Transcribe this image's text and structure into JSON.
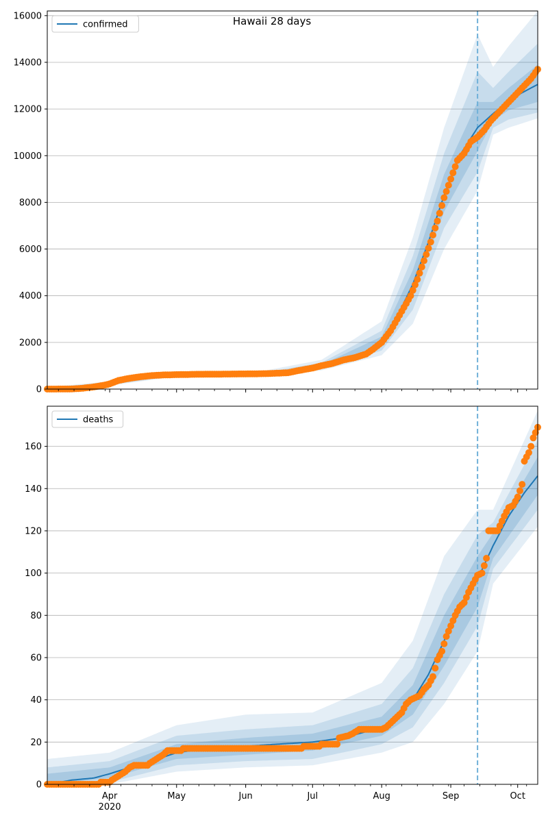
{
  "chart_data": [
    {
      "type": "line",
      "title": "Hawaii 28 days",
      "legend": "confirmed",
      "legend_position": "upper-left",
      "grid": "horizontal",
      "line_color": "#1f77b4",
      "point_color": "#ff7f0e",
      "band_color": "#1f77b4",
      "forecast_start": "2020-09-13",
      "xlim": [
        "2020-03-04",
        "2020-10-10"
      ],
      "ylim": [
        0,
        16200
      ],
      "yticks": [
        0,
        2000,
        4000,
        6000,
        8000,
        10000,
        12000,
        14000,
        16000
      ],
      "observed": [
        [
          "2020-03-04",
          0
        ],
        [
          "2020-03-10",
          2
        ],
        [
          "2020-03-15",
          5
        ],
        [
          "2020-03-20",
          37
        ],
        [
          "2020-03-25",
          95
        ],
        [
          "2020-03-30",
          175
        ],
        [
          "2020-04-01",
          224
        ],
        [
          "2020-04-05",
          371
        ],
        [
          "2020-04-10",
          465
        ],
        [
          "2020-04-15",
          530
        ],
        [
          "2020-04-20",
          580
        ],
        [
          "2020-04-25",
          605
        ],
        [
          "2020-05-01",
          618
        ],
        [
          "2020-05-10",
          633
        ],
        [
          "2020-05-20",
          640
        ],
        [
          "2020-06-01",
          650
        ],
        [
          "2020-06-10",
          660
        ],
        [
          "2020-06-20",
          700
        ],
        [
          "2020-06-25",
          800
        ],
        [
          "2020-07-01",
          900
        ],
        [
          "2020-07-05",
          1000
        ],
        [
          "2020-07-10",
          1100
        ],
        [
          "2020-07-15",
          1250
        ],
        [
          "2020-07-20",
          1350
        ],
        [
          "2020-07-25",
          1500
        ],
        [
          "2020-07-28",
          1700
        ],
        [
          "2020-08-01",
          2000
        ],
        [
          "2020-08-05",
          2500
        ],
        [
          "2020-08-08",
          3000
        ],
        [
          "2020-08-11",
          3500
        ],
        [
          "2020-08-14",
          4000
        ],
        [
          "2020-08-17",
          4700
        ],
        [
          "2020-08-20",
          5500
        ],
        [
          "2020-08-23",
          6300
        ],
        [
          "2020-08-26",
          7200
        ],
        [
          "2020-08-29",
          8200
        ],
        [
          "2020-09-01",
          9000
        ],
        [
          "2020-09-04",
          9800
        ],
        [
          "2020-09-07",
          10100
        ],
        [
          "2020-09-10",
          10600
        ],
        [
          "2020-09-13",
          10800
        ],
        [
          "2020-09-16",
          11100
        ],
        [
          "2020-09-19",
          11500
        ],
        [
          "2020-09-22",
          11800
        ],
        [
          "2020-09-25",
          12100
        ],
        [
          "2020-09-28",
          12400
        ],
        [
          "2020-10-01",
          12700
        ],
        [
          "2020-10-04",
          13000
        ],
        [
          "2020-10-07",
          13300
        ],
        [
          "2020-10-10",
          13700
        ]
      ],
      "model": [
        [
          "2020-03-04",
          0
        ],
        [
          "2020-03-15",
          10
        ],
        [
          "2020-03-25",
          100
        ],
        [
          "2020-04-01",
          230
        ],
        [
          "2020-04-10",
          460
        ],
        [
          "2020-04-20",
          570
        ],
        [
          "2020-05-01",
          615
        ],
        [
          "2020-05-20",
          640
        ],
        [
          "2020-06-10",
          665
        ],
        [
          "2020-06-25",
          760
        ],
        [
          "2020-07-05",
          980
        ],
        [
          "2020-07-15",
          1250
        ],
        [
          "2020-07-25",
          1570
        ],
        [
          "2020-08-01",
          2050
        ],
        [
          "2020-08-08",
          3100
        ],
        [
          "2020-08-15",
          4500
        ],
        [
          "2020-08-22",
          6300
        ],
        [
          "2020-08-29",
          8300
        ],
        [
          "2020-09-05",
          10000
        ],
        [
          "2020-09-13",
          11200
        ],
        [
          "2020-09-20",
          11800
        ],
        [
          "2020-09-27",
          12350
        ],
        [
          "2020-10-03",
          12700
        ],
        [
          "2020-10-10",
          13050
        ]
      ],
      "bands": [
        [
          [
            "2020-03-04",
            0,
            80
          ],
          [
            "2020-04-01",
            150,
            330
          ],
          [
            "2020-05-01",
            540,
            750
          ],
          [
            "2020-06-10",
            580,
            800
          ],
          [
            "2020-07-05",
            800,
            1250
          ],
          [
            "2020-08-01",
            1450,
            2900
          ],
          [
            "2020-08-15",
            2800,
            6500
          ],
          [
            "2020-08-29",
            6000,
            11200
          ],
          [
            "2020-09-13",
            8500,
            15200
          ],
          [
            "2020-09-20",
            10900,
            13800
          ],
          [
            "2020-09-27",
            11200,
            14700
          ],
          [
            "2020-10-10",
            11600,
            16200
          ]
        ],
        [
          [
            "2020-03-04",
            0,
            50
          ],
          [
            "2020-04-01",
            180,
            290
          ],
          [
            "2020-05-01",
            570,
            700
          ],
          [
            "2020-06-10",
            615,
            730
          ],
          [
            "2020-07-05",
            860,
            1130
          ],
          [
            "2020-08-01",
            1650,
            2500
          ],
          [
            "2020-08-15",
            3400,
            5700
          ],
          [
            "2020-08-29",
            6900,
            10100
          ],
          [
            "2020-09-13",
            9300,
            13600
          ],
          [
            "2020-09-20",
            11200,
            12900
          ],
          [
            "2020-09-27",
            11550,
            13600
          ],
          [
            "2020-10-10",
            11850,
            14800
          ]
        ],
        [
          [
            "2020-03-04",
            0,
            25
          ],
          [
            "2020-04-01",
            205,
            260
          ],
          [
            "2020-05-01",
            595,
            650
          ],
          [
            "2020-06-10",
            640,
            700
          ],
          [
            "2020-07-05",
            920,
            1050
          ],
          [
            "2020-08-01",
            1850,
            2250
          ],
          [
            "2020-08-15",
            4000,
            5100
          ],
          [
            "2020-08-29",
            7600,
            9200
          ],
          [
            "2020-09-13",
            10200,
            12300
          ],
          [
            "2020-09-20",
            11500,
            12300
          ],
          [
            "2020-09-27",
            11950,
            12900
          ],
          [
            "2020-10-10",
            12300,
            13900
          ]
        ]
      ]
    },
    {
      "type": "line",
      "title": "",
      "legend": "deaths",
      "legend_position": "upper-left",
      "grid": "horizontal",
      "line_color": "#1f77b4",
      "point_color": "#ff7f0e",
      "band_color": "#1f77b4",
      "forecast_start": "2020-09-13",
      "xlim": [
        "2020-03-04",
        "2020-10-10"
      ],
      "ylim": [
        0,
        179
      ],
      "yticks": [
        0,
        20,
        40,
        60,
        80,
        100,
        120,
        140,
        160
      ],
      "xticks": [
        {
          "date": "2020-04-01",
          "label": "Apr",
          "sublabel": "2020"
        },
        {
          "date": "2020-05-01",
          "label": "May"
        },
        {
          "date": "2020-06-01",
          "label": "Jun"
        },
        {
          "date": "2020-07-01",
          "label": "Jul"
        },
        {
          "date": "2020-08-01",
          "label": "Aug"
        },
        {
          "date": "2020-09-01",
          "label": "Sep"
        },
        {
          "date": "2020-10-01",
          "label": "Oct"
        }
      ],
      "observed": [
        [
          "2020-03-04",
          0
        ],
        [
          "2020-03-27",
          0
        ],
        [
          "2020-03-28",
          1
        ],
        [
          "2020-04-01",
          1
        ],
        [
          "2020-04-02",
          2
        ],
        [
          "2020-04-05",
          4
        ],
        [
          "2020-04-08",
          6
        ],
        [
          "2020-04-10",
          8
        ],
        [
          "2020-04-12",
          9
        ],
        [
          "2020-04-18",
          9
        ],
        [
          "2020-04-19",
          10
        ],
        [
          "2020-04-22",
          12
        ],
        [
          "2020-04-25",
          14
        ],
        [
          "2020-04-27",
          16
        ],
        [
          "2020-05-03",
          16
        ],
        [
          "2020-05-04",
          17
        ],
        [
          "2020-05-20",
          17
        ],
        [
          "2020-06-20",
          17
        ],
        [
          "2020-06-26",
          17
        ],
        [
          "2020-06-27",
          18
        ],
        [
          "2020-07-04",
          18
        ],
        [
          "2020-07-05",
          19
        ],
        [
          "2020-07-12",
          19
        ],
        [
          "2020-07-13",
          22
        ],
        [
          "2020-07-17",
          23
        ],
        [
          "2020-07-19",
          24
        ],
        [
          "2020-07-22",
          26
        ],
        [
          "2020-08-01",
          26
        ],
        [
          "2020-08-03",
          27
        ],
        [
          "2020-08-07",
          31
        ],
        [
          "2020-08-10",
          34
        ],
        [
          "2020-08-12",
          38
        ],
        [
          "2020-08-14",
          40
        ],
        [
          "2020-08-18",
          42
        ],
        [
          "2020-08-20",
          45
        ],
        [
          "2020-08-22",
          47
        ],
        [
          "2020-08-24",
          51
        ],
        [
          "2020-08-26",
          59
        ],
        [
          "2020-08-28",
          63
        ],
        [
          "2020-08-30",
          70
        ],
        [
          "2020-09-01",
          75
        ],
        [
          "2020-09-03",
          80
        ],
        [
          "2020-09-05",
          84
        ],
        [
          "2020-09-07",
          86
        ],
        [
          "2020-09-09",
          91
        ],
        [
          "2020-09-11",
          95
        ],
        [
          "2020-09-13",
          99
        ],
        [
          "2020-09-15",
          100
        ],
        [
          "2020-09-17",
          107
        ],
        [
          "2020-09-18",
          120
        ],
        [
          "2020-09-22",
          120
        ],
        [
          "2020-09-25",
          127
        ],
        [
          "2020-09-27",
          131
        ],
        [
          "2020-09-29",
          132
        ],
        [
          "2020-10-01",
          136
        ],
        [
          "2020-10-03",
          142
        ],
        [
          "2020-10-04",
          153
        ],
        [
          "2020-10-06",
          157
        ],
        [
          "2020-10-07",
          160
        ],
        [
          "2020-10-08",
          164
        ],
        [
          "2020-10-10",
          169
        ]
      ],
      "model": [
        [
          "2020-03-04",
          0
        ],
        [
          "2020-03-15",
          2
        ],
        [
          "2020-03-25",
          3
        ],
        [
          "2020-04-01",
          5
        ],
        [
          "2020-04-10",
          8
        ],
        [
          "2020-04-20",
          11
        ],
        [
          "2020-05-01",
          15
        ],
        [
          "2020-05-15",
          17
        ],
        [
          "2020-06-01",
          18
        ],
        [
          "2020-06-15",
          19
        ],
        [
          "2020-07-01",
          20
        ],
        [
          "2020-07-15",
          22
        ],
        [
          "2020-08-01",
          27
        ],
        [
          "2020-08-08",
          32
        ],
        [
          "2020-08-15",
          40
        ],
        [
          "2020-08-22",
          52
        ],
        [
          "2020-08-29",
          68
        ],
        [
          "2020-09-05",
          82
        ],
        [
          "2020-09-13",
          97
        ],
        [
          "2020-09-20",
          113
        ],
        [
          "2020-09-27",
          127
        ],
        [
          "2020-10-04",
          138
        ],
        [
          "2020-10-10",
          146
        ]
      ],
      "bands": [
        [
          [
            "2020-03-04",
            0,
            12
          ],
          [
            "2020-04-01",
            0,
            15
          ],
          [
            "2020-05-01",
            6,
            28
          ],
          [
            "2020-06-01",
            8,
            33
          ],
          [
            "2020-07-01",
            9,
            34
          ],
          [
            "2020-08-01",
            15,
            48
          ],
          [
            "2020-08-15",
            20,
            68
          ],
          [
            "2020-08-29",
            38,
            108
          ],
          [
            "2020-09-13",
            63,
            130
          ],
          [
            "2020-09-20",
            95,
            130
          ],
          [
            "2020-10-10",
            122,
            177
          ]
        ],
        [
          [
            "2020-03-04",
            0,
            8
          ],
          [
            "2020-04-01",
            1,
            11
          ],
          [
            "2020-05-01",
            9,
            23
          ],
          [
            "2020-06-01",
            11,
            26
          ],
          [
            "2020-07-01",
            12,
            28
          ],
          [
            "2020-08-01",
            19,
            38
          ],
          [
            "2020-08-15",
            27,
            55
          ],
          [
            "2020-08-29",
            48,
            90
          ],
          [
            "2020-09-13",
            75,
            118
          ],
          [
            "2020-09-20",
            102,
            124
          ],
          [
            "2020-10-10",
            130,
            163
          ]
        ],
        [
          [
            "2020-03-04",
            0,
            5
          ],
          [
            "2020-04-01",
            3,
            8
          ],
          [
            "2020-05-01",
            12,
            19
          ],
          [
            "2020-06-01",
            14,
            22
          ],
          [
            "2020-07-01",
            16,
            24
          ],
          [
            "2020-08-01",
            23,
            32
          ],
          [
            "2020-08-15",
            33,
            47
          ],
          [
            "2020-08-29",
            56,
            80
          ],
          [
            "2020-09-13",
            84,
            108
          ],
          [
            "2020-09-20",
            107,
            119
          ],
          [
            "2020-10-10",
            137,
            155
          ]
        ]
      ]
    }
  ]
}
